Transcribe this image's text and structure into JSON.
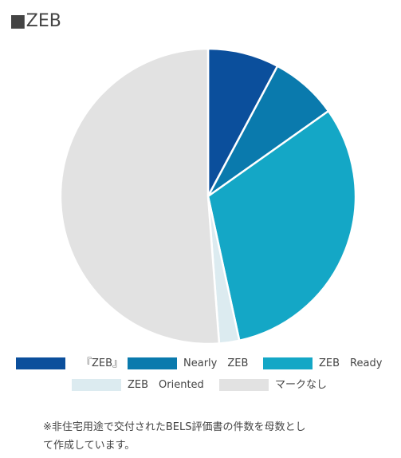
{
  "title": "■ZEB",
  "chart_data": {
    "type": "pie",
    "categories": [
      "『ZEB』",
      "Nearly　ZEB",
      "ZEB　Ready",
      "ZEB　Oriented",
      "マークなし"
    ],
    "values": [
      7.8,
      7.4,
      31.4,
      2.2,
      51.2
    ],
    "colors": [
      "#0b4f9c",
      "#0a7aad",
      "#14a7c6",
      "#dcebf0",
      "#e2e2e2"
    ],
    "start_angle": "top",
    "direction": "clockwise",
    "legend_position": "bottom"
  },
  "footnote": {
    "line1": "※非住宅用途で交付されたBELS評価書の件数を母数とし",
    "line2": "て作成しています。"
  }
}
